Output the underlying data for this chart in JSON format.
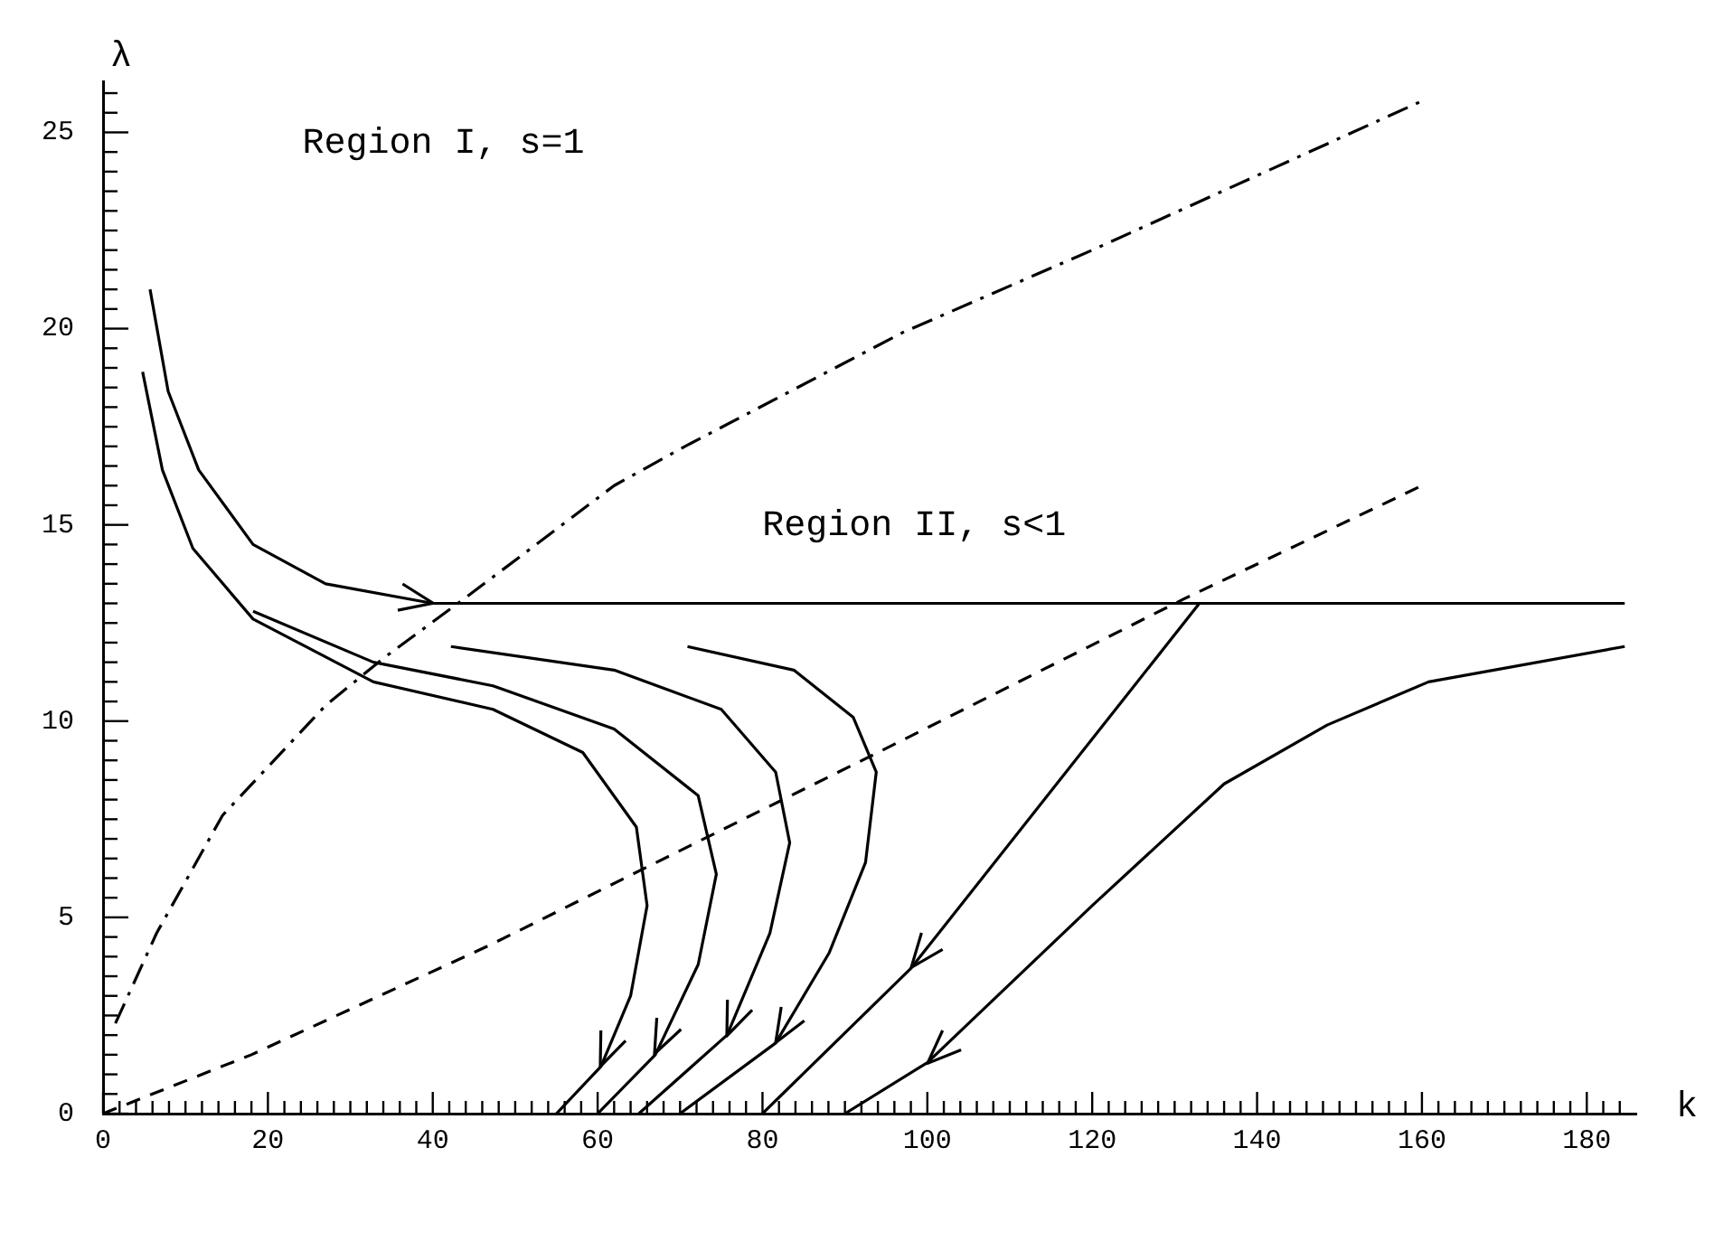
{
  "chart_data": {
    "type": "line",
    "xlabel": "k",
    "ylabel": "λ",
    "xlim": [
      0,
      186
    ],
    "ylim": [
      0,
      26.3
    ],
    "xticks": [
      0,
      {
        "value": 2,
        "label": null
      },
      {
        "value": 4,
        "label": null
      },
      {
        "value": 6,
        "label": null
      },
      {
        "value": 8,
        "label": null
      },
      {
        "value": 10,
        "label": null
      },
      {
        "value": 12,
        "label": null
      },
      {
        "value": 14,
        "label": null
      },
      {
        "value": 16,
        "label": null
      },
      {
        "value": 18,
        "label": null
      },
      20,
      {
        "value": 22,
        "label": null
      },
      {
        "value": 24,
        "label": null
      },
      {
        "value": 26,
        "label": null
      },
      {
        "value": 28,
        "label": null
      },
      {
        "value": 30,
        "label": null
      },
      {
        "value": 32,
        "label": null
      },
      {
        "value": 34,
        "label": null
      },
      {
        "value": 36,
        "label": null
      },
      {
        "value": 38,
        "label": null
      },
      40,
      {
        "value": 42,
        "label": null
      },
      {
        "value": 44,
        "label": null
      },
      {
        "value": 46,
        "label": null
      },
      {
        "value": 48,
        "label": null
      },
      {
        "value": 50,
        "label": null
      },
      {
        "value": 52,
        "label": null
      },
      {
        "value": 54,
        "label": null
      },
      {
        "value": 56,
        "label": null
      },
      {
        "value": 58,
        "label": null
      },
      60,
      {
        "value": 62,
        "label": null
      },
      {
        "value": 64,
        "label": null
      },
      {
        "value": 66,
        "label": null
      },
      {
        "value": 68,
        "label": null
      },
      {
        "value": 70,
        "label": null
      },
      {
        "value": 72,
        "label": null
      },
      {
        "value": 74,
        "label": null
      },
      {
        "value": 76,
        "label": null
      },
      {
        "value": 78,
        "label": null
      },
      80,
      {
        "value": 82,
        "label": null
      },
      {
        "value": 84,
        "label": null
      },
      {
        "value": 86,
        "label": null
      },
      {
        "value": 88,
        "label": null
      },
      {
        "value": 90,
        "label": null
      },
      {
        "value": 92,
        "label": null
      },
      {
        "value": 94,
        "label": null
      },
      {
        "value": 96,
        "label": null
      },
      {
        "value": 98,
        "label": null
      },
      100,
      {
        "value": 102,
        "label": null
      },
      {
        "value": 104,
        "label": null
      },
      {
        "value": 106,
        "label": null
      },
      {
        "value": 108,
        "label": null
      },
      {
        "value": 110,
        "label": null
      },
      {
        "value": 112,
        "label": null
      },
      {
        "value": 114,
        "label": null
      },
      {
        "value": 116,
        "label": null
      },
      {
        "value": 118,
        "label": null
      },
      120,
      {
        "value": 122,
        "label": null
      },
      {
        "value": 124,
        "label": null
      },
      {
        "value": 126,
        "label": null
      },
      {
        "value": 128,
        "label": null
      },
      {
        "value": 130,
        "label": null
      },
      {
        "value": 132,
        "label": null
      },
      {
        "value": 134,
        "label": null
      },
      {
        "value": 136,
        "label": null
      },
      {
        "value": 138,
        "label": null
      },
      140,
      {
        "value": 142,
        "label": null
      },
      {
        "value": 144,
        "label": null
      },
      {
        "value": 146,
        "label": null
      },
      {
        "value": 148,
        "label": null
      },
      {
        "value": 150,
        "label": null
      },
      {
        "value": 152,
        "label": null
      },
      {
        "value": 154,
        "label": null
      },
      {
        "value": 156,
        "label": null
      },
      {
        "value": 158,
        "label": null
      },
      160,
      {
        "value": 162,
        "label": null
      },
      {
        "value": 164,
        "label": null
      },
      {
        "value": 166,
        "label": null
      },
      {
        "value": 168,
        "label": null
      },
      {
        "value": 170,
        "label": null
      },
      {
        "value": 172,
        "label": null
      },
      {
        "value": 174,
        "label": null
      },
      {
        "value": 176,
        "label": null
      },
      {
        "value": 178,
        "label": null
      },
      180,
      {
        "value": 182,
        "label": null
      },
      {
        "value": 184,
        "label": null
      }
    ],
    "yticks": [
      0,
      {
        "value": 0.5,
        "label": null
      },
      {
        "value": 1,
        "label": null
      },
      {
        "value": 1.5,
        "label": null
      },
      {
        "value": 2,
        "label": null
      },
      {
        "value": 2.5,
        "label": null
      },
      {
        "value": 3,
        "label": null
      },
      {
        "value": 3.5,
        "label": null
      },
      {
        "value": 4,
        "label": null
      },
      {
        "value": 4.5,
        "label": null
      },
      5,
      {
        "value": 5.5,
        "label": null
      },
      {
        "value": 6,
        "label": null
      },
      {
        "value": 6.5,
        "label": null
      },
      {
        "value": 7,
        "label": null
      },
      {
        "value": 7.5,
        "label": null
      },
      {
        "value": 8,
        "label": null
      },
      {
        "value": 8.5,
        "label": null
      },
      {
        "value": 9,
        "label": null
      },
      {
        "value": 9.5,
        "label": null
      },
      10,
      {
        "value": 10.5,
        "label": null
      },
      {
        "value": 11,
        "label": null
      },
      {
        "value": 11.5,
        "label": null
      },
      {
        "value": 12,
        "label": null
      },
      {
        "value": 12.5,
        "label": null
      },
      {
        "value": 13,
        "label": null
      },
      {
        "value": 13.5,
        "label": null
      },
      {
        "value": 14,
        "label": null
      },
      {
        "value": 14.5,
        "label": null
      },
      15,
      {
        "value": 15.5,
        "label": null
      },
      {
        "value": 16,
        "label": null
      },
      {
        "value": 16.5,
        "label": null
      },
      {
        "value": 17,
        "label": null
      },
      {
        "value": 17.5,
        "label": null
      },
      {
        "value": 18,
        "label": null
      },
      {
        "value": 18.5,
        "label": null
      },
      {
        "value": 19,
        "label": null
      },
      {
        "value": 19.5,
        "label": null
      },
      20,
      {
        "value": 20.5,
        "label": null
      },
      {
        "value": 21,
        "label": null
      },
      {
        "value": 21.5,
        "label": null
      },
      {
        "value": 22,
        "label": null
      },
      {
        "value": 22.5,
        "label": null
      },
      {
        "value": 23,
        "label": null
      },
      {
        "value": 23.5,
        "label": null
      },
      {
        "value": 24,
        "label": null
      },
      {
        "value": 24.5,
        "label": null
      },
      25,
      {
        "value": 25.5,
        "label": null
      },
      {
        "value": 26,
        "label": null
      }
    ],
    "grid": false,
    "legend": false,
    "annotations": [
      "Region I, s=1",
      "Region II, s<1"
    ],
    "series": [
      {
        "color": "#000000",
        "line_style": "dashdot",
        "x": [
          1.5,
          6.5,
          14.5,
          27,
          34,
          43.7,
          62,
          70.6,
          97,
          120,
          160
        ],
        "values": [
          2.3,
          4.6,
          7.6,
          10.4,
          11.6,
          13.1,
          16.0,
          17.0,
          19.9,
          22.0,
          25.8
        ]
      },
      {
        "color": "#000000",
        "line_style": "dashed",
        "x": [
          0,
          18,
          47,
          70,
          94,
          131,
          160
        ],
        "values": [
          0,
          1.5,
          4.3,
          6.7,
          9.2,
          13.1,
          16.0
        ]
      },
      {
        "color": "#000000",
        "line_style": "solid",
        "x": [
          5.7,
          7.9,
          11.6,
          18.2,
          27,
          40,
          184.6
        ],
        "values": [
          21.0,
          18.4,
          16.4,
          14.5,
          13.5,
          13.0,
          13.0
        ]
      },
      {
        "color": "#000000",
        "line_style": "solid",
        "x": [
          4.8,
          7.2,
          10.9,
          18.2,
          32.8,
          47.3,
          58.2,
          64.7,
          66,
          64,
          60.4,
          55
        ],
        "values": [
          18.9,
          16.4,
          14.4,
          12.6,
          11.0,
          10.3,
          9.2,
          7.3,
          5.3,
          3.0,
          1.2,
          0
        ]
      },
      {
        "color": "#000000",
        "line_style": "solid",
        "x": [
          18.2,
          32.8,
          47.3,
          62,
          72.2,
          74.4,
          72.2,
          67,
          60
        ],
        "values": [
          12.8,
          11.5,
          10.9,
          9.8,
          8.1,
          6.1,
          3.8,
          1.5,
          0
        ]
      },
      {
        "color": "#000000",
        "line_style": "solid",
        "x": [
          42.2,
          62,
          75,
          81.6,
          83.3,
          80.9,
          75.7,
          65
        ],
        "values": [
          11.9,
          11.3,
          10.3,
          8.7,
          6.9,
          4.6,
          2.0,
          0
        ]
      },
      {
        "color": "#000000",
        "line_style": "solid",
        "x": [
          70.9,
          83.8,
          91,
          93.8,
          92.5,
          88.1,
          81.6,
          70
        ],
        "values": [
          11.9,
          11.3,
          10.1,
          8.7,
          6.4,
          4.1,
          1.8,
          0
        ]
      },
      {
        "color": "#000000",
        "line_style": "solid",
        "x": [
          133,
          98,
          80
        ],
        "values": [
          13.0,
          3.7,
          0
        ]
      },
      {
        "color": "#000000",
        "line_style": "solid",
        "x": [
          184.6,
          160.8,
          148.5,
          136,
          120,
          100,
          90
        ],
        "values": [
          11.9,
          11.0,
          9.9,
          8.4,
          5.3,
          1.3,
          0
        ]
      }
    ]
  }
}
